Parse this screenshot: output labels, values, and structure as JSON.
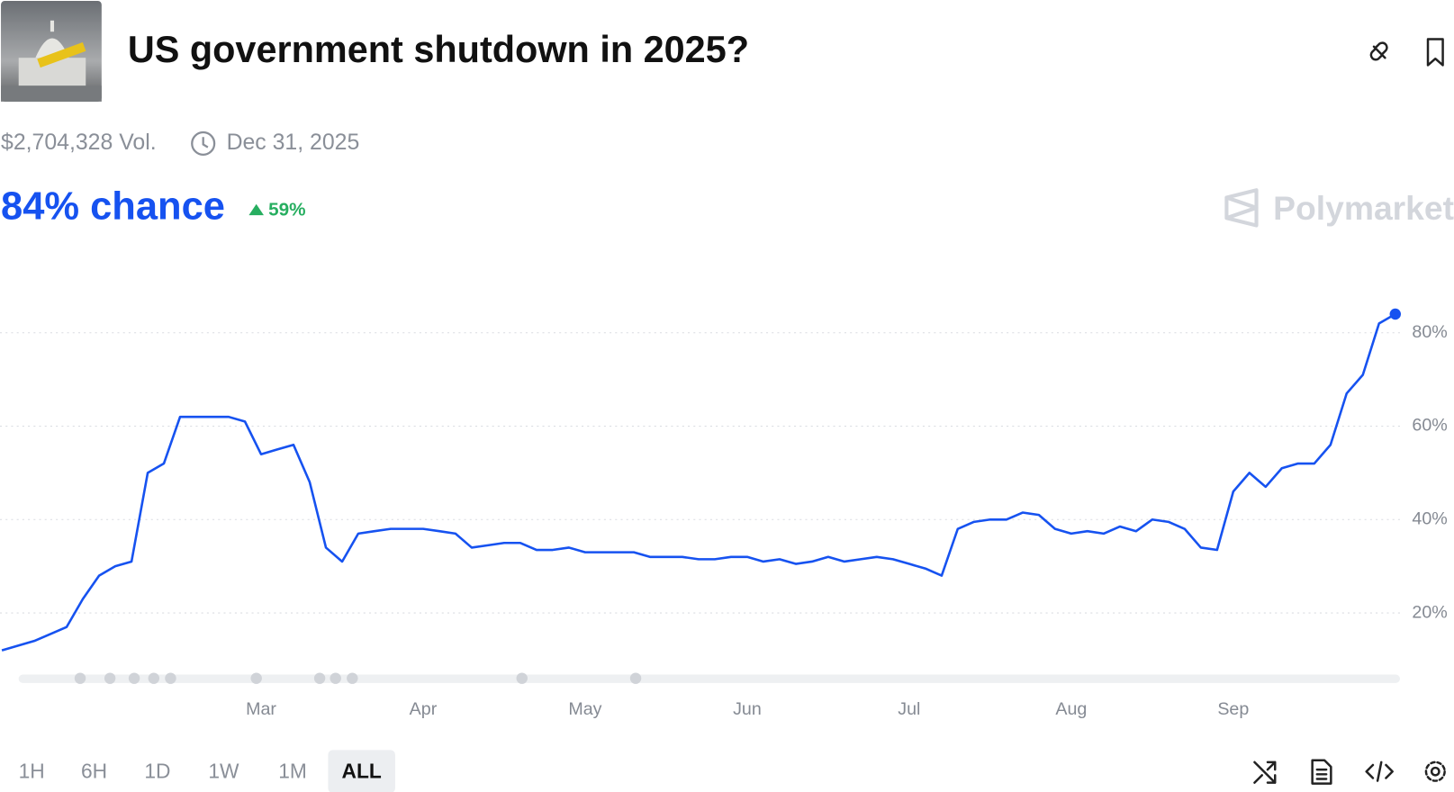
{
  "header": {
    "title": "US government shutdown in 2025?",
    "volume": "$2,704,328 Vol.",
    "end_date": "Dec 31, 2025",
    "chance": "84% chance",
    "change": "59%",
    "brand": "Polymarket"
  },
  "chart_data": {
    "type": "line",
    "categories": [
      null,
      null,
      null,
      null,
      null,
      null,
      null,
      null,
      null,
      null,
      null,
      null,
      null,
      null,
      null,
      null,
      "Mar",
      null,
      null,
      null,
      null,
      null,
      null,
      null,
      null,
      null,
      "Apr",
      null,
      null,
      null,
      null,
      null,
      null,
      null,
      null,
      null,
      "May",
      null,
      null,
      null,
      null,
      null,
      null,
      null,
      null,
      null,
      "Jun",
      null,
      null,
      null,
      null,
      null,
      null,
      null,
      null,
      null,
      "Jul",
      null,
      null,
      null,
      null,
      null,
      null,
      null,
      null,
      null,
      "Aug",
      null,
      null,
      null,
      null,
      null,
      null,
      null,
      null,
      null,
      "Sep",
      null,
      null,
      null,
      null,
      null,
      null,
      null,
      null,
      null,
      null
    ],
    "values": [
      12,
      13,
      14,
      15.5,
      17,
      23,
      28,
      30,
      31,
      50,
      52,
      62,
      62,
      62,
      62,
      61,
      54,
      55,
      56,
      48,
      34,
      31,
      37,
      37.5,
      38,
      38,
      38,
      37.5,
      37,
      34,
      34.5,
      35,
      35,
      33.5,
      33.5,
      34,
      33,
      33,
      33,
      33,
      32,
      32,
      32,
      31.5,
      31.5,
      32,
      32,
      31,
      31.5,
      30.5,
      31,
      32,
      31,
      31.5,
      32,
      31.5,
      30.5,
      29.5,
      28,
      38,
      39.5,
      40,
      40,
      41.5,
      41,
      38,
      37,
      37.5,
      37,
      38.5,
      37.5,
      40,
      39.5,
      38,
      34,
      33.5,
      46,
      50,
      47,
      51,
      52,
      52,
      56,
      67,
      71,
      82,
      84
    ],
    "color": "#1652f0",
    "ylim": [
      8,
      92
    ],
    "yticks": [
      {
        "value": 20,
        "label": "20%"
      },
      {
        "value": 40,
        "label": "40%"
      },
      {
        "value": 60,
        "label": "60%"
      },
      {
        "value": 80,
        "label": "80%"
      }
    ],
    "grid": true
  },
  "time_ranges": [
    "1H",
    "6H",
    "1D",
    "1W",
    "1M",
    "ALL"
  ],
  "selected_range": "ALL"
}
